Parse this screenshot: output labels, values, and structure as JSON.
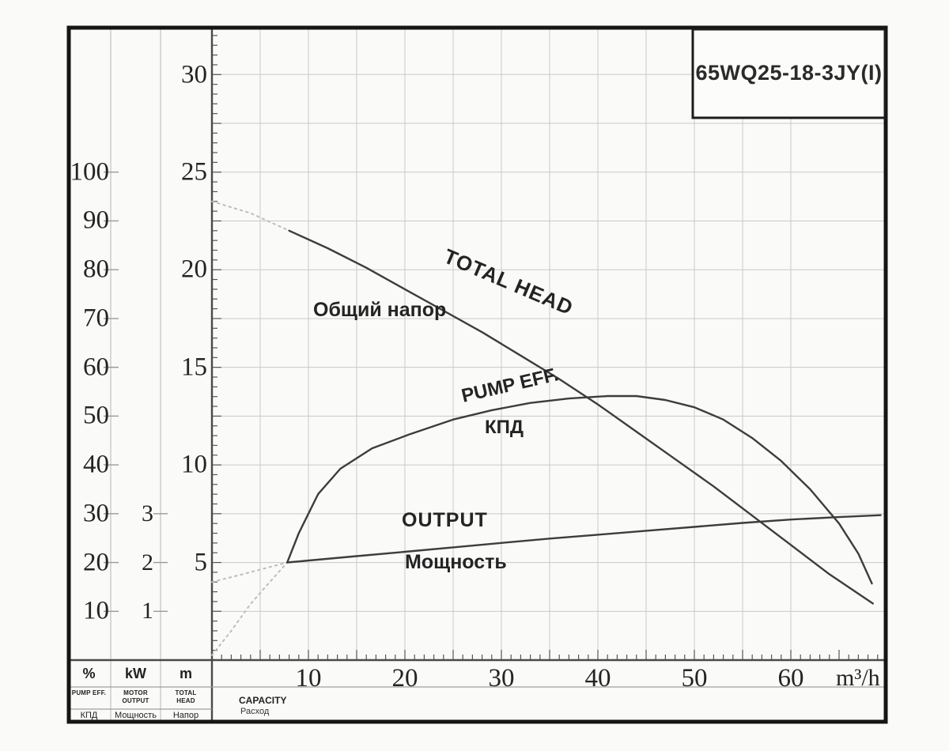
{
  "title_box": {
    "model": "65WQ25-18-3JY(I)"
  },
  "axes": {
    "percent": {
      "ticks": [
        "100",
        "90",
        "80",
        "70",
        "60",
        "50",
        "40",
        "30",
        "20",
        "10"
      ]
    },
    "kw": {
      "ticks": [
        "3",
        "2",
        "1"
      ]
    },
    "m": {
      "ticks": [
        "30",
        "25",
        "20",
        "15",
        "10",
        "5"
      ]
    },
    "x": {
      "ticks": [
        "10",
        "20",
        "30",
        "40",
        "50",
        "60"
      ],
      "unit": "m³/h"
    }
  },
  "footer": {
    "columns": [
      {
        "symbol": "%",
        "en": "PUMP EFF.",
        "ru": "КПД"
      },
      {
        "symbol": "kW",
        "en": "MOTOR OUTPUT",
        "ru": "Мощность"
      },
      {
        "symbol": "m",
        "en": "TOTAL HEAD",
        "ru": "Напор"
      }
    ],
    "capacity_en": "CAPACITY",
    "capacity_ru": "Расход"
  },
  "curve_labels": {
    "head_en": "TOTAL HEAD",
    "head_ru": "Общий напор",
    "eff_en": "PUMP EFF.",
    "eff_ru": "КПД",
    "out_en": "OUTPUT",
    "out_ru": "Мощность"
  },
  "chart_data": {
    "type": "line",
    "title": "65WQQ pump performance 65WQ25-18-3JY(I)",
    "xlabel": "CAPACITY (m³/h)",
    "x_range": [
      0,
      70
    ],
    "grid": true,
    "series": [
      {
        "id": "total-head",
        "name": "TOTAL HEAD (Общий напор)",
        "unit": "m",
        "axis_range": [
          0,
          32.5
        ],
        "dotted_prefix": [
          [
            0,
            23.5
          ],
          [
            4,
            22.9
          ],
          [
            8,
            22.0
          ]
        ],
        "points": [
          [
            8,
            22.0
          ],
          [
            12,
            21.1
          ],
          [
            16,
            20.1
          ],
          [
            20,
            19.0
          ],
          [
            24,
            17.9
          ],
          [
            28,
            16.8
          ],
          [
            32,
            15.6
          ],
          [
            36,
            14.4
          ],
          [
            40,
            13.1
          ],
          [
            44,
            11.7
          ],
          [
            48,
            10.3
          ],
          [
            52,
            8.9
          ],
          [
            56,
            7.4
          ],
          [
            60,
            5.9
          ],
          [
            64,
            4.4
          ],
          [
            68.5,
            2.9
          ]
        ]
      },
      {
        "id": "pump-eff",
        "name": "PUMP EFF. (КПД)",
        "unit": "%",
        "axis_range": [
          0,
          130
        ],
        "dotted_prefix": [
          [
            0,
            1
          ],
          [
            2,
            6
          ],
          [
            4,
            11.5
          ],
          [
            6,
            16
          ],
          [
            7.8,
            20
          ]
        ],
        "points": [
          [
            7.8,
            20
          ],
          [
            9,
            26
          ],
          [
            11,
            34
          ],
          [
            13.3,
            39.2
          ],
          [
            16.6,
            43.4
          ],
          [
            20.4,
            46.2
          ],
          [
            25,
            49.3
          ],
          [
            29,
            51.2
          ],
          [
            33,
            52.7
          ],
          [
            37,
            53.6
          ],
          [
            41,
            54.1
          ],
          [
            44,
            54.1
          ],
          [
            47,
            53.3
          ],
          [
            50,
            51.8
          ],
          [
            53,
            49.3
          ],
          [
            56,
            45.5
          ],
          [
            59,
            40.8
          ],
          [
            62,
            35
          ],
          [
            65,
            28
          ],
          [
            67,
            21.8
          ],
          [
            68.4,
            15.7
          ]
        ]
      },
      {
        "id": "output",
        "name": "OUTPUT (Мощность)",
        "unit": "kW",
        "axis_range": [
          0,
          13
        ],
        "dotted_prefix": [
          [
            0,
            1.6
          ],
          [
            3,
            1.75
          ],
          [
            5.5,
            1.88
          ],
          [
            7.8,
            2.0
          ]
        ],
        "points": [
          [
            7.8,
            2.0
          ],
          [
            15,
            2.13
          ],
          [
            20,
            2.22
          ],
          [
            25,
            2.31
          ],
          [
            30,
            2.4
          ],
          [
            35,
            2.49
          ],
          [
            40,
            2.57
          ],
          [
            45,
            2.65
          ],
          [
            50,
            2.73
          ],
          [
            55,
            2.81
          ],
          [
            60,
            2.88
          ],
          [
            65,
            2.93
          ],
          [
            69.3,
            2.97
          ]
        ]
      }
    ]
  }
}
